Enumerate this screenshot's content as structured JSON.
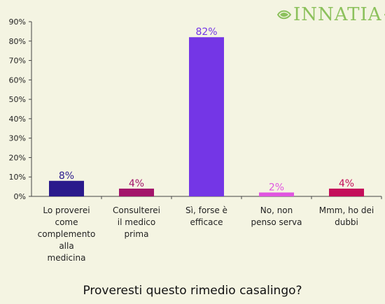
{
  "logo": {
    "text": "INNATIA"
  },
  "colors": {
    "axis": "#444444",
    "grid": "#d0d0c0",
    "background": "#f4f4e2",
    "logo": "#8cc15c"
  },
  "chart_data": {
    "type": "bar",
    "title": "Proveresti questo rimedio casalingo?",
    "xlabel": "",
    "ylabel": "",
    "ylim": [
      0,
      90
    ],
    "yticks": [
      0,
      10,
      20,
      30,
      40,
      50,
      60,
      70,
      80,
      90
    ],
    "ytick_labels": [
      "0%",
      "10%",
      "20%",
      "30%",
      "40%",
      "50%",
      "60%",
      "70%",
      "80%",
      "90%"
    ],
    "grid": false,
    "legend": "none",
    "categories": [
      {
        "lines": [
          "Lo proverei",
          "come",
          "complemento",
          "alla",
          "medicina"
        ]
      },
      {
        "lines": [
          "Consulterei",
          "il medico",
          "prima"
        ]
      },
      {
        "lines": [
          "Sì, forse è",
          "efficace"
        ]
      },
      {
        "lines": [
          "No, non",
          "penso serva"
        ]
      },
      {
        "lines": [
          "Mmm, ho dei",
          "dubbi"
        ]
      }
    ],
    "values": [
      8,
      4,
      82,
      2,
      4
    ],
    "value_labels": [
      "8%",
      "4%",
      "82%",
      "2%",
      "4%"
    ],
    "bar_colors": [
      "#2a1a8c",
      "#a3146a",
      "#7436e6",
      "#e055e0",
      "#c40e5a"
    ],
    "label_colors": [
      "#2a1a8c",
      "#a3146a",
      "#7436e6",
      "#e055e0",
      "#c40e5a"
    ]
  }
}
